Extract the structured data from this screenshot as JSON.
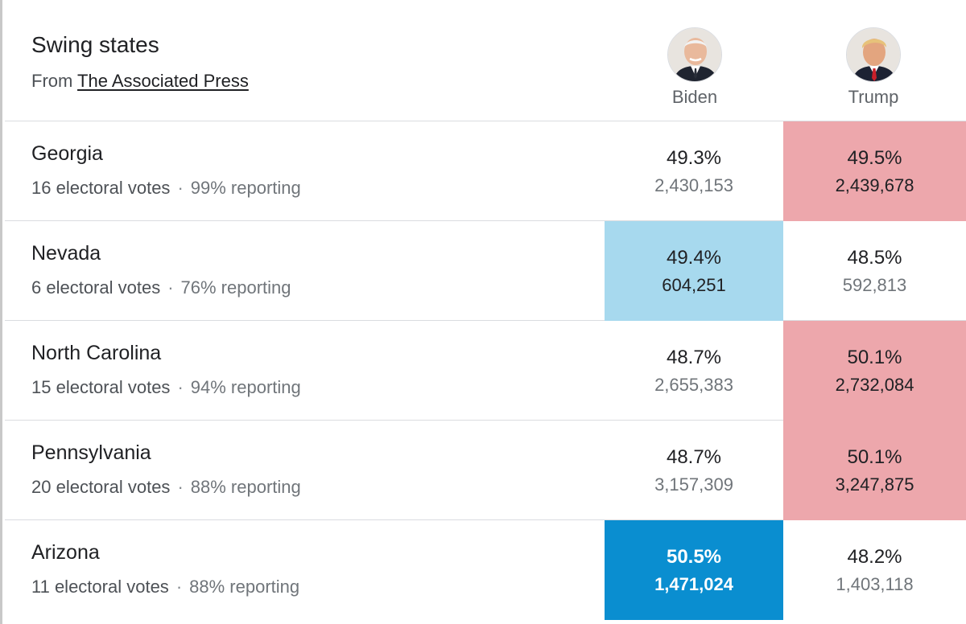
{
  "header": {
    "title": "Swing states",
    "source_prefix": "From",
    "source_name": "The Associated Press"
  },
  "candidates": [
    {
      "name": "Biden",
      "party_color": "#0a8ed0"
    },
    {
      "name": "Trump",
      "party_color": "#eda7ac"
    }
  ],
  "states": [
    {
      "name": "Georgia",
      "electoral_votes": "16 electoral votes",
      "separator": "·",
      "reporting": "99% reporting",
      "biden": {
        "pct": "49.3%",
        "votes": "2,430,153"
      },
      "trump": {
        "pct": "49.5%",
        "votes": "2,439,678"
      },
      "leader": "trump"
    },
    {
      "name": "Nevada",
      "electoral_votes": "6 electoral votes",
      "separator": "·",
      "reporting": "76% reporting",
      "biden": {
        "pct": "49.4%",
        "votes": "604,251"
      },
      "trump": {
        "pct": "48.5%",
        "votes": "592,813"
      },
      "leader": "biden"
    },
    {
      "name": "North Carolina",
      "electoral_votes": "15 electoral votes",
      "separator": "·",
      "reporting": "94% reporting",
      "biden": {
        "pct": "48.7%",
        "votes": "2,655,383"
      },
      "trump": {
        "pct": "50.1%",
        "votes": "2,732,084"
      },
      "leader": "trump"
    },
    {
      "name": "Pennsylvania",
      "electoral_votes": "20 electoral votes",
      "separator": "·",
      "reporting": "88% reporting",
      "biden": {
        "pct": "48.7%",
        "votes": "3,157,309"
      },
      "trump": {
        "pct": "50.1%",
        "votes": "3,247,875"
      },
      "leader": "trump"
    },
    {
      "name": "Arizona",
      "electoral_votes": "11 electoral votes",
      "separator": "·",
      "reporting": "88% reporting",
      "biden": {
        "pct": "50.5%",
        "votes": "1,471,024"
      },
      "trump": {
        "pct": "48.2%",
        "votes": "1,403,118"
      },
      "leader": "biden-called"
    }
  ],
  "colors": {
    "trump_lead": "#eda7ac",
    "biden_lead": "#a7d9ee",
    "biden_called": "#0a8ed0"
  }
}
